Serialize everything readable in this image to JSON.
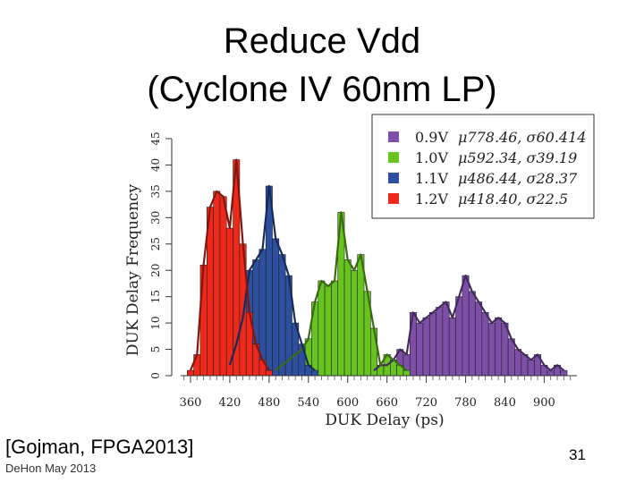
{
  "slide": {
    "title_line1": "Reduce Vdd",
    "title_line2": "(Cyclone IV 60nm LP)",
    "citation": "[Gojman, FPGA2013]",
    "author": "DeHon May 2013",
    "page_number": "31"
  },
  "chart_data": {
    "type": "histogram",
    "xlabel": "DUK Delay (ps)",
    "ylabel": "DUK Delay Frequency",
    "xlim": [
      345,
      950
    ],
    "ylim": [
      0,
      45
    ],
    "bin_width": 10,
    "x_ticks": [
      360,
      420,
      480,
      540,
      600,
      660,
      720,
      780,
      840,
      900
    ],
    "y_ticks": [
      0,
      5,
      10,
      15,
      20,
      25,
      30,
      35,
      40,
      45
    ],
    "legend_position": "top-right",
    "series": [
      {
        "name": "0.9V",
        "stats": "μ778.46, σ60.414",
        "color": "#7d4fa8",
        "x": [
          640,
          650,
          660,
          670,
          680,
          690,
          700,
          710,
          720,
          730,
          740,
          750,
          760,
          770,
          780,
          790,
          800,
          810,
          820,
          830,
          840,
          850,
          860,
          870,
          880,
          890,
          900,
          910,
          920,
          930
        ],
        "values": [
          1,
          2,
          2,
          3,
          5,
          4,
          12,
          10,
          11,
          12,
          13,
          14,
          11,
          15,
          19,
          16,
          14,
          12,
          10,
          11,
          10,
          7,
          5,
          4,
          3,
          4,
          2,
          1,
          2,
          1
        ]
      },
      {
        "name": "1.0V",
        "stats": "μ592.34, σ39.19",
        "color": "#67c41f",
        "x": [
          490,
          500,
          510,
          520,
          530,
          540,
          550,
          560,
          570,
          580,
          590,
          600,
          610,
          620,
          630,
          640,
          650,
          660,
          670,
          680,
          690
        ],
        "values": [
          1,
          2,
          3,
          4,
          5,
          7,
          14,
          18,
          17,
          18,
          31,
          22,
          20,
          23,
          16,
          9,
          2,
          4,
          3,
          2,
          1
        ]
      },
      {
        "name": "1.1V",
        "stats": "μ486.44, σ28.37",
        "color": "#2d4fa0",
        "x": [
          420,
          430,
          440,
          450,
          460,
          470,
          480,
          490,
          500,
          510,
          520,
          530,
          540,
          550
        ],
        "values": [
          2,
          6,
          11,
          20,
          22,
          24,
          36,
          26,
          23,
          19,
          10,
          6,
          2,
          1
        ]
      },
      {
        "name": "1.2V",
        "stats": "μ418.40, σ22.5",
        "color": "#f0281a",
        "x": [
          360,
          370,
          380,
          390,
          400,
          410,
          420,
          430,
          440,
          450,
          460,
          470,
          480
        ],
        "values": [
          1,
          4,
          21,
          32,
          35,
          34,
          28,
          41,
          25,
          12,
          6,
          3,
          1
        ]
      }
    ]
  }
}
